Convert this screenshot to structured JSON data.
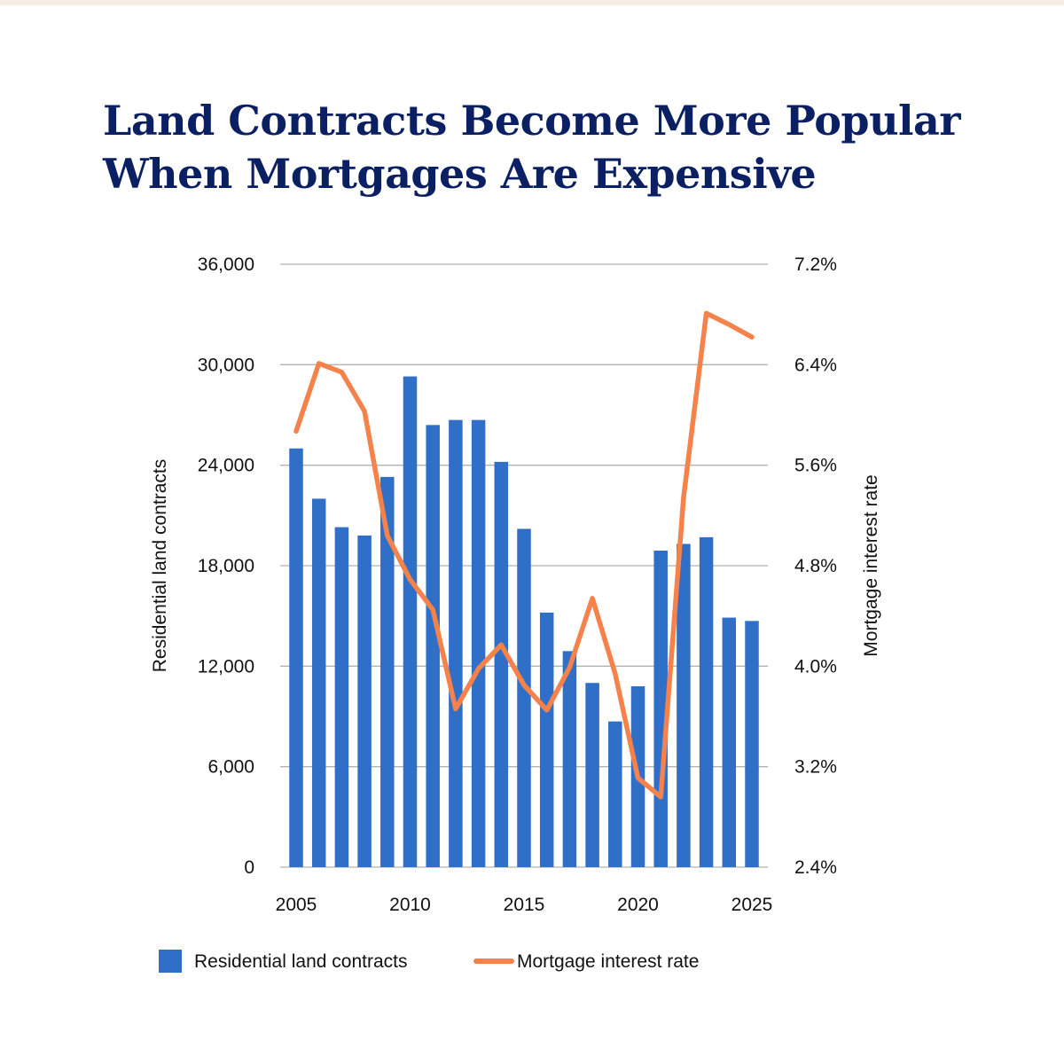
{
  "title_lines": [
    "Land Contracts Become More Popular",
    "When Mortgages Are Expensive"
  ],
  "colors": {
    "title": "#0b1f63",
    "bars": "#2f6fc7",
    "line": "#f4824a",
    "grid": "#b3b3b3"
  },
  "chart_data": {
    "type": "bar+line",
    "x": [
      2005,
      2006,
      2007,
      2008,
      2009,
      2010,
      2011,
      2012,
      2013,
      2014,
      2015,
      2016,
      2017,
      2018,
      2019,
      2020,
      2021,
      2022,
      2023,
      2024,
      2025
    ],
    "x_tick_labels": [
      "2005",
      "2010",
      "2015",
      "2020",
      "2025"
    ],
    "x_tick_values": [
      2005,
      2010,
      2015,
      2020,
      2025
    ],
    "series": [
      {
        "name": "Residential land contracts",
        "type": "bar",
        "axis": "left",
        "values": [
          25000,
          22000,
          20300,
          19800,
          23300,
          29300,
          26400,
          26700,
          26700,
          24200,
          20200,
          15200,
          12900,
          11000,
          8700,
          10800,
          18900,
          19300,
          19700,
          14900,
          14700
        ]
      },
      {
        "name": "Mortgage interest rate",
        "type": "line",
        "axis": "right",
        "values": [
          5.87,
          6.41,
          6.34,
          6.03,
          5.04,
          4.69,
          4.45,
          3.66,
          3.98,
          4.17,
          3.85,
          3.65,
          3.99,
          4.54,
          3.94,
          3.11,
          2.96,
          5.34,
          6.81,
          6.72,
          6.62
        ]
      }
    ],
    "y_left": {
      "label": "Residential land contracts",
      "range": [
        0,
        36000
      ],
      "ticks": [
        "0",
        "6,000",
        "12,000",
        "18,000",
        "24,000",
        "30,000",
        "36,000"
      ]
    },
    "y_right": {
      "label": "Mortgage interest rate",
      "range": [
        2.4,
        7.2
      ],
      "ticks": [
        "2.4%",
        "3.2%",
        "4.0%",
        "4.8%",
        "5.6%",
        "6.4%",
        "7.2%"
      ]
    },
    "grid": true,
    "legend_position": "bottom"
  }
}
